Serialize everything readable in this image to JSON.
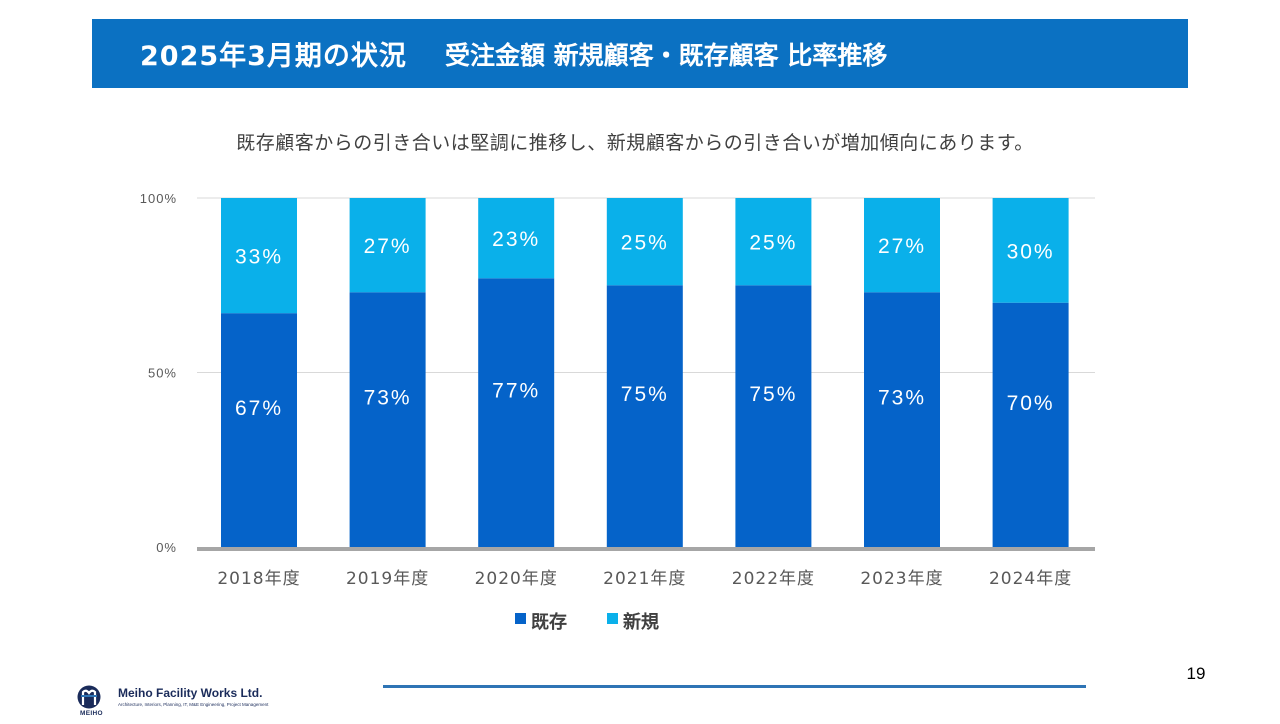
{
  "header": {
    "title_main": "2025年3月期の状況",
    "title_sub": "受注金額 新規顧客・既存顧客 比率推移",
    "banner_color": "#0B71C2"
  },
  "subtitle": "既存顧客からの引き合いは堅調に推移し、新規顧客からの引き合いが増加傾向にあります。",
  "chart_data": {
    "type": "bar",
    "stacked": true,
    "categories": [
      "2018年度",
      "2019年度",
      "2020年度",
      "2021年度",
      "2022年度",
      "2023年度",
      "2024年度"
    ],
    "series": [
      {
        "name": "既存",
        "values": [
          67,
          73,
          77,
          75,
          75,
          73,
          70
        ],
        "labels": [
          "67%",
          "73%",
          "77%",
          "75%",
          "75%",
          "73%",
          "70%"
        ],
        "color": "#0563C9"
      },
      {
        "name": "新規",
        "values": [
          33,
          27,
          23,
          25,
          25,
          27,
          30
        ],
        "labels": [
          "33%",
          "27%",
          "23%",
          "25%",
          "25%",
          "27%",
          "30%"
        ],
        "color": "#0AB0EA"
      }
    ],
    "ylim": [
      0,
      100
    ],
    "yticks": [
      {
        "value": 0,
        "label": "0%"
      },
      {
        "value": 50,
        "label": "50%"
      },
      {
        "value": 100,
        "label": "100%"
      }
    ],
    "grid": true,
    "legend_position": "bottom"
  },
  "page_number": "19",
  "footer": {
    "company_name": "Meiho Facility Works Ltd.",
    "tagline": "Architecture, Interiors, Planning, IT, M&E Engineering, Project Management",
    "brand": "MEIHO"
  }
}
